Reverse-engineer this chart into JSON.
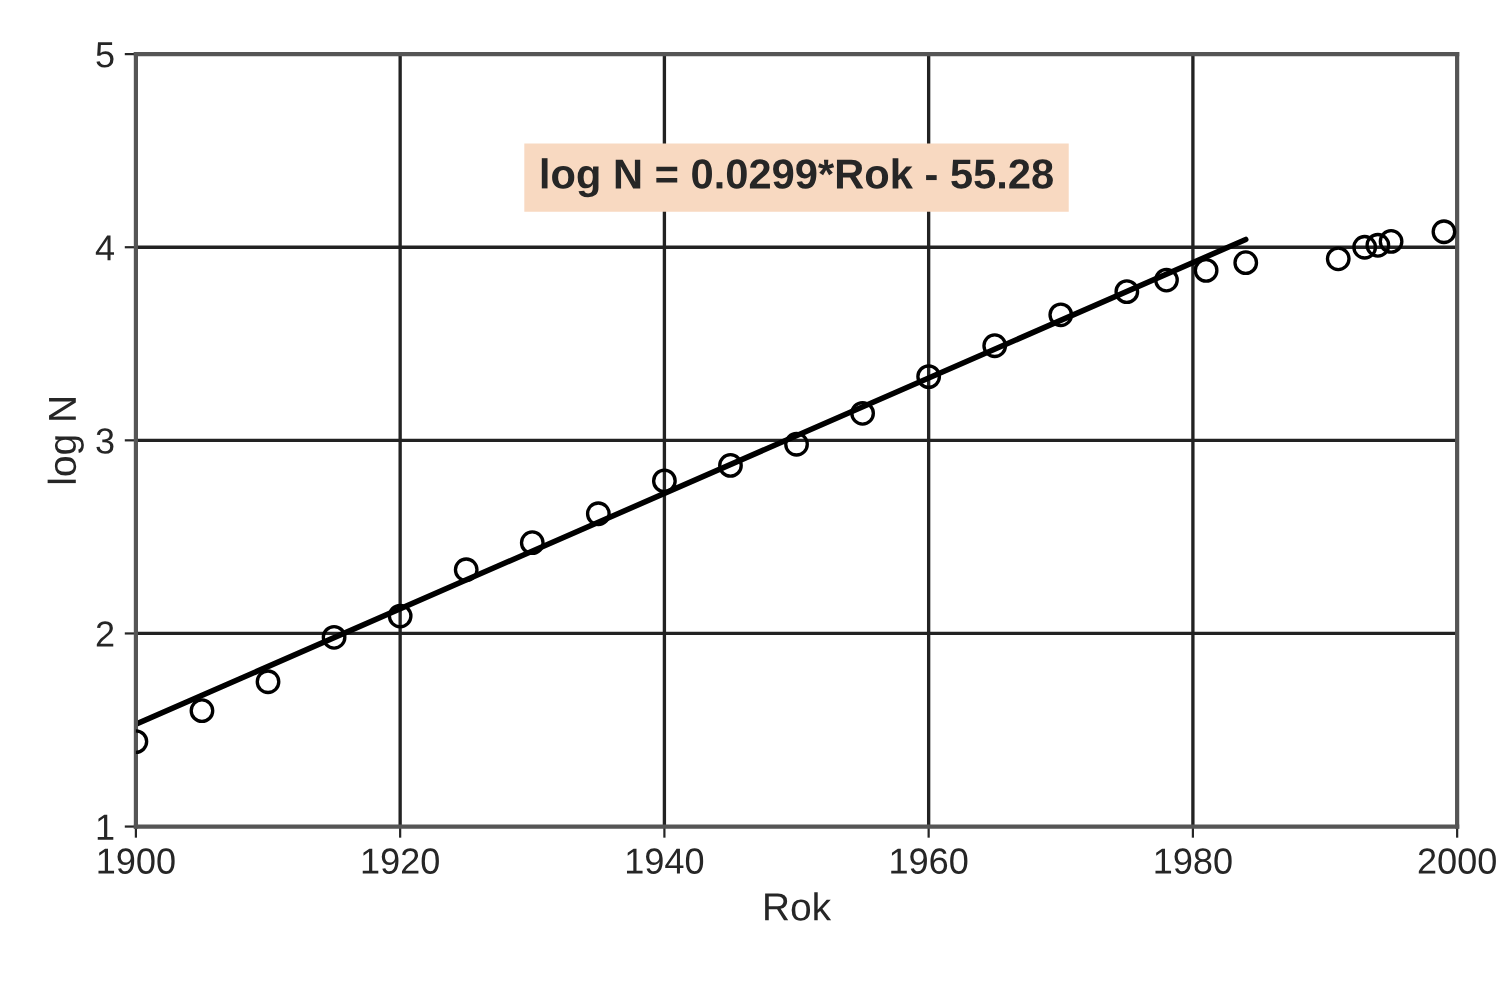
{
  "chart_data": {
    "type": "scatter",
    "xlabel": "Rok",
    "ylabel": "log N",
    "annotations": [
      "log N = 0.0299*Rok - 55.28"
    ],
    "series": [
      {
        "color": "#000000",
        "marker": "circle",
        "x": [
          1900,
          1905,
          1910,
          1915,
          1920,
          1925,
          1930,
          1935,
          1940,
          1945,
          1950,
          1955,
          1960,
          1965,
          1970,
          1975,
          1978,
          1981,
          1984,
          1991,
          1993,
          1994,
          1995,
          1999
        ],
        "values": [
          1.44,
          1.6,
          1.75,
          1.98,
          2.09,
          2.33,
          2.47,
          2.62,
          2.79,
          2.87,
          2.98,
          3.14,
          3.33,
          3.49,
          3.65,
          3.77,
          3.83,
          3.88,
          3.92,
          3.94,
          4.0,
          4.01,
          4.03,
          4.08
        ]
      },
      {
        "type": "line",
        "color": "#000000",
        "x": [
          1900,
          1984
        ],
        "values": [
          1.53,
          4.04
        ]
      }
    ],
    "xlim": [
      1900,
      2000
    ],
    "xticks": [
      1900,
      1920,
      1940,
      1960,
      1980,
      2000
    ],
    "ylim": [
      1,
      5
    ],
    "yticks": [
      1,
      2,
      3,
      4,
      5
    ],
    "grid": true
  }
}
